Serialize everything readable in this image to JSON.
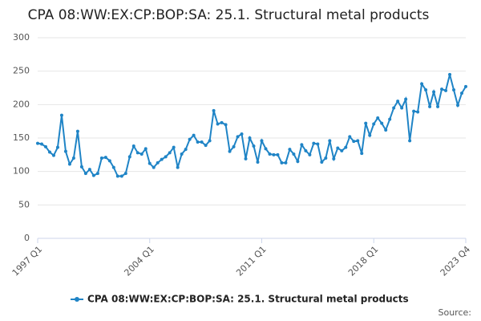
{
  "chart_data": {
    "type": "line",
    "title": "CPA 08:WW:EX:CP:BOP:SA: 25.1. Structural metal products",
    "source": "Source:",
    "categories": [
      "1997 Q1",
      null,
      null,
      null,
      null,
      null,
      null,
      null,
      null,
      null,
      null,
      null,
      null,
      null,
      null,
      null,
      null,
      null,
      null,
      null,
      null,
      null,
      null,
      null,
      null,
      null,
      null,
      null,
      "2004 Q1",
      null,
      null,
      null,
      null,
      null,
      null,
      null,
      null,
      null,
      null,
      null,
      null,
      null,
      null,
      null,
      null,
      null,
      null,
      null,
      null,
      null,
      null,
      null,
      null,
      null,
      null,
      null,
      "2011 Q1",
      null,
      null,
      null,
      null,
      null,
      null,
      null,
      null,
      null,
      null,
      null,
      null,
      null,
      null,
      null,
      null,
      null,
      null,
      null,
      null,
      null,
      null,
      null,
      null,
      null,
      null,
      null,
      "2018 Q1",
      null,
      null,
      null,
      null,
      null,
      null,
      null,
      null,
      null,
      null,
      null,
      null,
      null,
      null,
      null,
      null,
      null,
      null,
      null,
      null,
      null,
      null,
      "2023 Q4"
    ],
    "series": [
      {
        "name": "CPA 08:WW:EX:CP:BOP:SA: 25.1. Structural metal products",
        "color": "#1f84c6",
        "values": [
          142,
          141,
          137,
          129,
          124,
          136,
          184,
          130,
          111,
          120,
          160,
          107,
          97,
          103,
          94,
          97,
          120,
          121,
          116,
          106,
          93,
          93,
          97,
          122,
          138,
          128,
          126,
          134,
          112,
          106,
          113,
          118,
          122,
          128,
          136,
          106,
          126,
          133,
          148,
          154,
          144,
          144,
          139,
          146,
          191,
          171,
          173,
          170,
          130,
          137,
          152,
          156,
          119,
          150,
          138,
          114,
          146,
          134,
          126,
          125,
          125,
          113,
          113,
          133,
          126,
          115,
          140,
          131,
          125,
          142,
          141,
          114,
          120,
          146,
          119,
          135,
          131,
          136,
          152,
          145,
          146,
          127,
          172,
          154,
          171,
          180,
          172,
          162,
          178,
          195,
          205,
          195,
          208,
          146,
          190,
          189,
          231,
          222,
          197,
          219,
          197,
          223,
          221,
          245,
          222,
          199,
          217,
          227
        ]
      }
    ],
    "ylim": [
      0,
      300
    ],
    "yticks": [
      0,
      50,
      100,
      150,
      200,
      250,
      300
    ],
    "grid": true
  }
}
